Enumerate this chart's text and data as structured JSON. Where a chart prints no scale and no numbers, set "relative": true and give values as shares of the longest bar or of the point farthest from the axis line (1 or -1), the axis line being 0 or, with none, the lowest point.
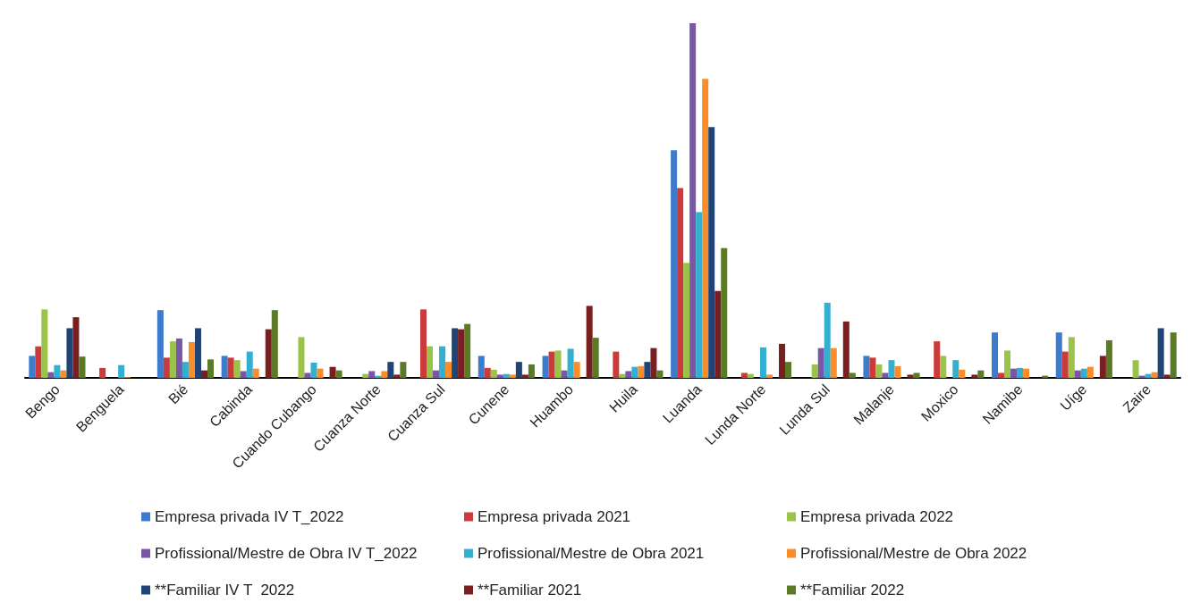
{
  "chart_data": {
    "type": "bar",
    "relative": true,
    "legend": "bottom",
    "categories": [
      "Bengo",
      "Benguela",
      "Bié",
      "Cabinda",
      "Cuando Cubango",
      "Cuanza Norte",
      "Cuanza Sul",
      "Cunene",
      "Huambo",
      "Huila",
      "Luanda",
      "Lunda Norte",
      "Lunda Sul",
      "Malanje",
      "Moxico",
      "Namibe",
      "Uíge",
      "Zaire"
    ],
    "series": [
      {
        "name": "Empresa privada IV T_2022",
        "color": "#3d7bcc",
        "values": [
          0.062,
          0,
          0.191,
          0.062,
          0,
          0,
          0,
          0.062,
          0.062,
          0,
          0.642,
          0,
          0,
          0.062,
          0,
          0.128,
          0.128,
          0
        ]
      },
      {
        "name": "Empresa privada 2021",
        "color": "#cc3b3b",
        "values": [
          0.089,
          0.028,
          0.057,
          0.057,
          0,
          0,
          0.193,
          0.028,
          0.074,
          0.074,
          0.535,
          0.014,
          0,
          0.057,
          0.103,
          0.014,
          0.074,
          0
        ]
      },
      {
        "name": "Empresa privada 2022",
        "color": "#9bc34a",
        "values": [
          0.193,
          0,
          0.103,
          0.05,
          0.115,
          0.011,
          0.089,
          0.023,
          0.077,
          0.011,
          0.324,
          0.011,
          0.038,
          0.038,
          0.062,
          0.077,
          0.115,
          0.05
        ]
      },
      {
        "name": "Profissional/Mestre de Obra IV T_2022",
        "color": "#7a57a6",
        "values": [
          0.016,
          0,
          0.111,
          0.019,
          0.014,
          0.019,
          0.021,
          0.009,
          0.021,
          0.019,
          1,
          0,
          0.084,
          0.014,
          0,
          0.026,
          0.021,
          0.006
        ]
      },
      {
        "name": "Profissional/Mestre de Obra 2021",
        "color": "#33afd1",
        "values": [
          0.036,
          0.036,
          0.045,
          0.074,
          0.043,
          0.006,
          0.089,
          0.011,
          0.082,
          0.031,
          0.467,
          0.086,
          0.212,
          0.05,
          0.05,
          0.028,
          0.026,
          0.011
        ]
      },
      {
        "name": "Profissional/Mestre de Obra 2022",
        "color": "#f88d2a",
        "values": [
          0.021,
          0.002,
          0.101,
          0.026,
          0.026,
          0.019,
          0.045,
          0.009,
          0.045,
          0.033,
          0.843,
          0.009,
          0.084,
          0.033,
          0.023,
          0.026,
          0.031,
          0.016
        ]
      },
      {
        "name": "**Familiar IV T  2022",
        "color": "#1f4475",
        "values": [
          0.14,
          0,
          0.14,
          0,
          0,
          0.045,
          0.14,
          0.045,
          0,
          0.045,
          0.707,
          0,
          0,
          0,
          0,
          0,
          0,
          0.14
        ]
      },
      {
        "name": "**Familiar 2021",
        "color": "#7a1f1f",
        "values": [
          0.171,
          0,
          0.021,
          0.137,
          0.031,
          0.009,
          0.137,
          0.009,
          0.203,
          0.084,
          0.245,
          0.096,
          0.159,
          0.009,
          0.009,
          0,
          0.062,
          0.009
        ]
      },
      {
        "name": "**Familiar 2022",
        "color": "#5b7a26",
        "values": [
          0.06,
          0,
          0.052,
          0.191,
          0.021,
          0.045,
          0.152,
          0.038,
          0.113,
          0.021,
          0.366,
          0.045,
          0.014,
          0.014,
          0.021,
          0.006,
          0.106,
          0.128
        ]
      }
    ]
  }
}
